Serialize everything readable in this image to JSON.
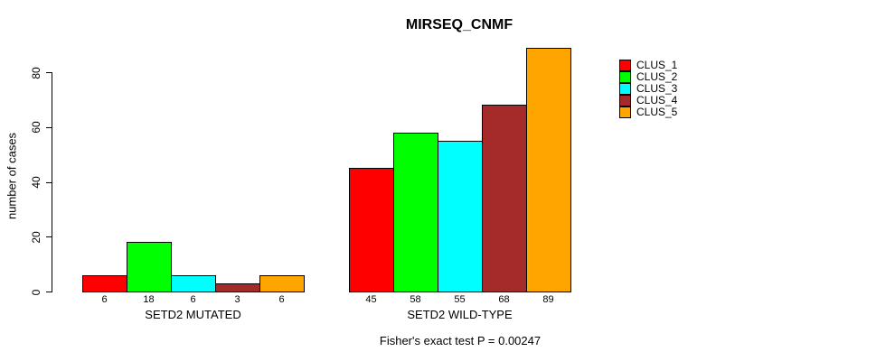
{
  "chart_data": {
    "type": "bar",
    "title": "MIRSEQ_CNMF",
    "ylabel": "number of cases",
    "yticks": [
      0,
      20,
      40,
      60,
      80
    ],
    "ylim": [
      0,
      80
    ],
    "grid": false,
    "legend_position": "right-outside-top",
    "categories": [
      "SETD2 MUTATED",
      "SETD2 WILD-TYPE"
    ],
    "groups": [
      {
        "label": "SETD2 MUTATED",
        "values": [
          6,
          18,
          6,
          3,
          6
        ]
      },
      {
        "label": "SETD2 WILD-TYPE",
        "values": [
          45,
          58,
          55,
          68,
          89
        ]
      }
    ],
    "series": [
      {
        "name": "CLUS_1",
        "color": "#FF0000"
      },
      {
        "name": "CLUS_2",
        "color": "#00FF00"
      },
      {
        "name": "CLUS_3",
        "color": "#00FFFF"
      },
      {
        "name": "CLUS_4",
        "color": "#A52A2A"
      },
      {
        "name": "CLUS_5",
        "color": "#FFA500"
      }
    ],
    "bar_value_labels": [
      [
        6,
        18,
        6,
        3,
        6
      ],
      [
        45,
        58,
        55,
        68,
        89
      ]
    ],
    "annotation": "Fisher's exact test P = 0.00247"
  },
  "colors": {
    "background": "#FFFFFF",
    "axis": "#000000",
    "text": "#000000"
  }
}
